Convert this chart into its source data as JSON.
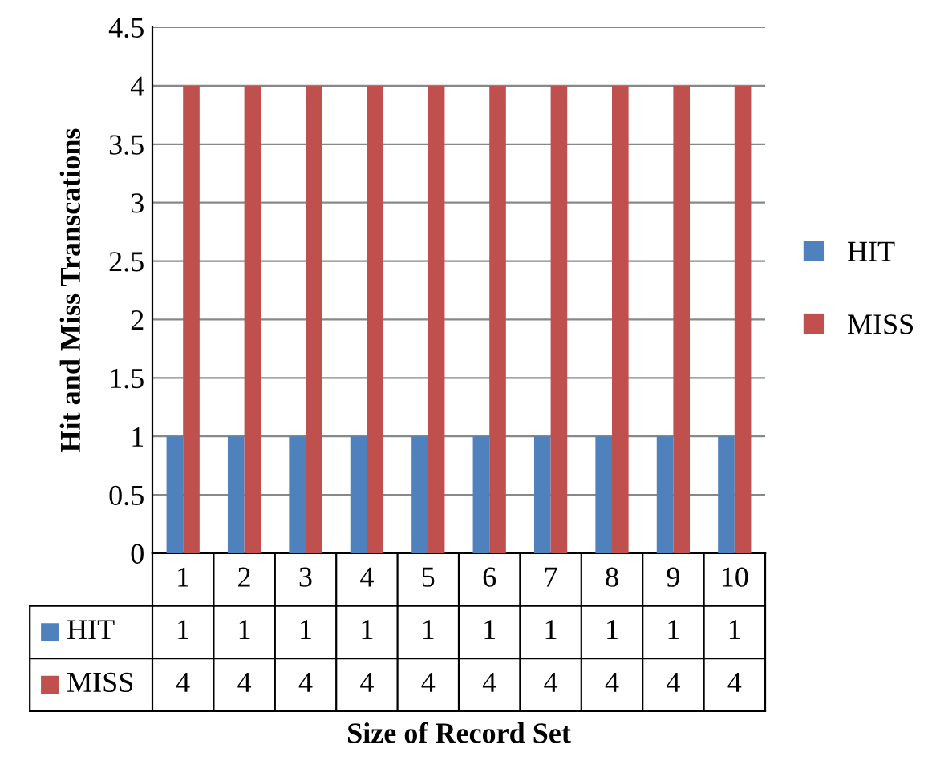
{
  "chart_data": {
    "type": "bar",
    "xlabel": "Size of Record Set",
    "ylabel": "Hit and Miss Transcations",
    "categories": [
      "1",
      "2",
      "3",
      "4",
      "5",
      "6",
      "7",
      "8",
      "9",
      "10"
    ],
    "series": [
      {
        "name": "HIT",
        "color": "#4f81bd",
        "values": [
          1,
          1,
          1,
          1,
          1,
          1,
          1,
          1,
          1,
          1
        ]
      },
      {
        "name": "MISS",
        "color": "#c0504d",
        "values": [
          4,
          4,
          4,
          4,
          4,
          4,
          4,
          4,
          4,
          4
        ]
      }
    ],
    "ylim": [
      0,
      4.5
    ],
    "yticks": [
      0,
      0.5,
      1,
      1.5,
      2,
      2.5,
      3,
      3.5,
      4,
      4.5
    ],
    "grid": "y",
    "legend": "right",
    "data_labels": true
  }
}
